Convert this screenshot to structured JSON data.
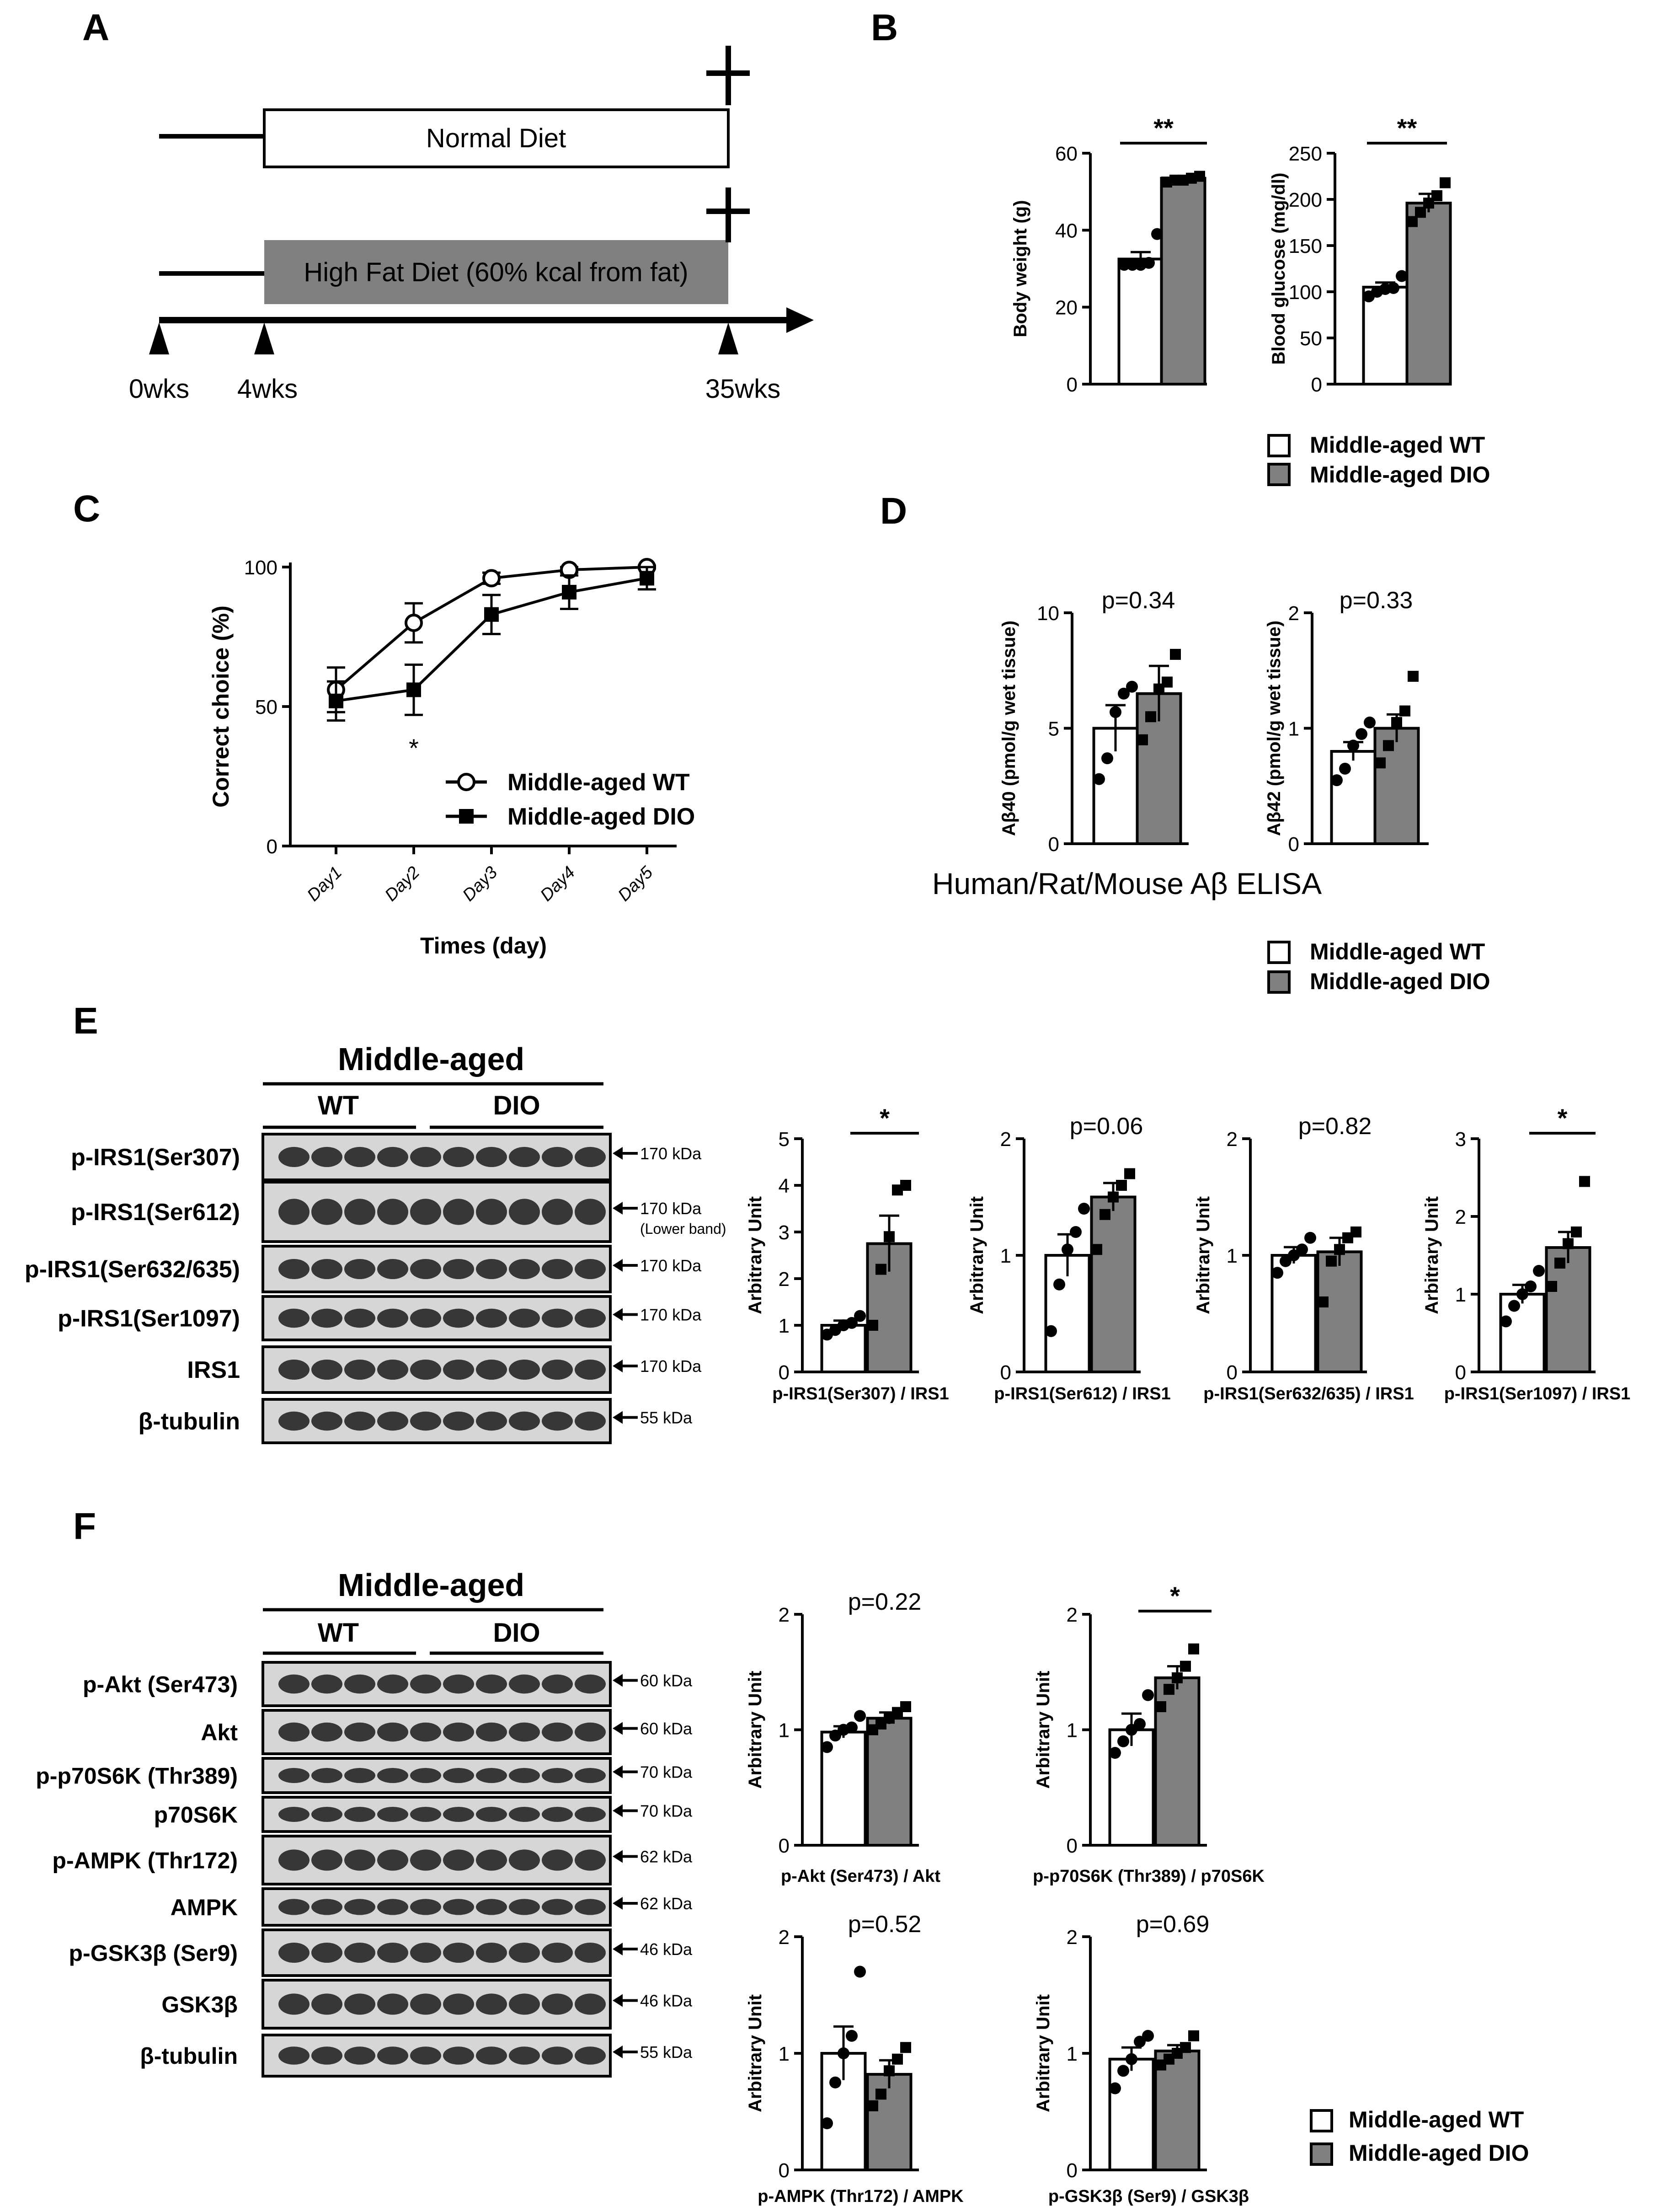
{
  "colors": {
    "wt": "#ffffff",
    "dio": "#808080",
    "line": "#000000",
    "blot_bg": "#d6d6d6",
    "band": "#1b1b1b"
  },
  "labels": {
    "panels": {
      "a": "A",
      "b": "B",
      "c": "C",
      "d": "D",
      "e": "E",
      "f": "F"
    },
    "timeline": {
      "normal_diet": "Normal Diet",
      "hfd": "High Fat Diet (60% kcal from fat)",
      "t0": "0wks",
      "t4": "4wks",
      "t35": "35wks"
    },
    "legend": {
      "wt": "Middle-aged WT",
      "dio": "Middle-aged DIO"
    },
    "elisa": "Human/Rat/Mouse Aβ ELISA",
    "middle_aged": "Middle-aged",
    "group_wt": "WT",
    "group_dio": "DIO"
  },
  "blots_e": [
    {
      "name": "p-IRS1(Ser307)",
      "kda": "170 kDa",
      "sub": ""
    },
    {
      "name": "p-IRS1(Ser612)",
      "kda": "170 kDa",
      "sub": "(Lower band)"
    },
    {
      "name": "p-IRS1(Ser632/635)",
      "kda": "170 kDa",
      "sub": ""
    },
    {
      "name": "p-IRS1(Ser1097)",
      "kda": "170 kDa",
      "sub": ""
    },
    {
      "name": "IRS1",
      "kda": "170 kDa",
      "sub": ""
    },
    {
      "name": "β-tubulin",
      "kda": "55 kDa",
      "sub": ""
    }
  ],
  "blots_f": [
    {
      "name": "p-Akt (Ser473)",
      "kda": "60 kDa"
    },
    {
      "name": "Akt",
      "kda": "60 kDa"
    },
    {
      "name": "p-p70S6K (Thr389)",
      "kda": "70 kDa"
    },
    {
      "name": "p70S6K",
      "kda": "70 kDa"
    },
    {
      "name": "p-AMPK (Thr172)",
      "kda": "62 kDa"
    },
    {
      "name": "AMPK",
      "kda": "62 kDa"
    },
    {
      "name": "p-GSK3β (Ser9)",
      "kda": "46 kDa"
    },
    {
      "name": "GSK3β",
      "kda": "46 kDa"
    },
    {
      "name": "β-tubulin",
      "kda": "55 kDa"
    }
  ],
  "chart_data": [
    {
      "id": "b1",
      "type": "bar",
      "ylabel": "Body weight (g)",
      "ylim": [
        0,
        60
      ],
      "ticks": [
        0,
        20,
        40,
        60
      ],
      "annotation": "**",
      "categories": [
        "Middle-aged WT",
        "Middle-aged DIO"
      ],
      "values": [
        32.5,
        53.5
      ],
      "sem": [
        1.8,
        0.6
      ],
      "points": [
        [
          31,
          31,
          31,
          31.5,
          39
        ],
        [
          52.5,
          53,
          53,
          53.5,
          54
        ]
      ]
    },
    {
      "id": "b2",
      "type": "bar",
      "ylabel": "Blood glucose (mg/dl)",
      "ylim": [
        0,
        250
      ],
      "ticks": [
        0,
        50,
        100,
        150,
        200,
        250
      ],
      "annotation": "**",
      "categories": [
        "Middle-aged WT",
        "Middle-aged DIO"
      ],
      "values": [
        105,
        196
      ],
      "sem": [
        5,
        10
      ],
      "points": [
        [
          95,
          100,
          103,
          104,
          117
        ],
        [
          176,
          186,
          196,
          204,
          218
        ]
      ]
    },
    {
      "id": "c",
      "type": "line",
      "ylabel": "Correct choice (%)",
      "xlabel": "Times (day)",
      "ylim": [
        0,
        100
      ],
      "ticks": [
        0,
        50,
        100
      ],
      "categories": [
        "Day1",
        "Day2",
        "Day3",
        "Day4",
        "Day5"
      ],
      "annotation": "*",
      "annotation_at": "Day2",
      "series": [
        {
          "name": "Middle-aged WT",
          "marker": "open-circle",
          "values": [
            56,
            80,
            96,
            99,
            100
          ],
          "sem": [
            8,
            7,
            2,
            1,
            0.5
          ]
        },
        {
          "name": "Middle-aged DIO",
          "marker": "filled-square",
          "values": [
            52,
            56,
            83,
            91,
            96
          ],
          "sem": [
            7,
            9,
            7,
            6,
            4
          ]
        }
      ]
    },
    {
      "id": "d1",
      "type": "bar",
      "ylabel": "Aβ40 (pmol/g wet tissue)",
      "ylim": [
        0,
        10
      ],
      "ticks": [
        0,
        5,
        10
      ],
      "annotation": "p=0.34",
      "categories": [
        "Middle-aged WT",
        "Middle-aged DIO"
      ],
      "values": [
        5.0,
        6.5
      ],
      "sem": [
        1.0,
        1.2
      ],
      "points": [
        [
          2.8,
          3.7,
          5.7,
          6.5,
          6.8
        ],
        [
          4.5,
          5.5,
          6.7,
          7.0,
          8.2
        ]
      ]
    },
    {
      "id": "d2",
      "type": "bar",
      "ylabel": "Aβ42 (pmol/g wet tissue)",
      "ylim": [
        0,
        2
      ],
      "ticks": [
        0,
        1,
        2
      ],
      "annotation": "p=0.33",
      "categories": [
        "Middle-aged WT",
        "Middle-aged DIO"
      ],
      "values": [
        0.8,
        1.0
      ],
      "sem": [
        0.08,
        0.12
      ],
      "points": [
        [
          0.55,
          0.65,
          0.85,
          0.95,
          1.05
        ],
        [
          0.7,
          0.85,
          1.05,
          1.15,
          1.45
        ]
      ]
    },
    {
      "id": "e1",
      "type": "bar",
      "xlabel": "p-IRS1(Ser307) / IRS1",
      "ylabel": "Arbitrary Unit",
      "ylim": [
        0,
        5
      ],
      "ticks": [
        0,
        1,
        2,
        3,
        4,
        5
      ],
      "annotation": "*",
      "categories": [
        "Middle-aged WT",
        "Middle-aged DIO"
      ],
      "values": [
        1.0,
        2.75
      ],
      "sem": [
        0.1,
        0.6
      ],
      "points": [
        [
          0.8,
          0.9,
          1.0,
          1.05,
          1.2
        ],
        [
          1.0,
          2.2,
          2.9,
          3.9,
          4.0
        ]
      ]
    },
    {
      "id": "e2",
      "type": "bar",
      "xlabel": "p-IRS1(Ser612) / IRS1",
      "ylabel": "Arbitrary Unit",
      "ylim": [
        0,
        2
      ],
      "ticks": [
        0,
        1,
        2
      ],
      "annotation": "p=0.06",
      "categories": [
        "Middle-aged WT",
        "Middle-aged DIO"
      ],
      "values": [
        1.0,
        1.5
      ],
      "sem": [
        0.18,
        0.12
      ],
      "points": [
        [
          0.35,
          0.75,
          1.05,
          1.2,
          1.4
        ],
        [
          1.05,
          1.35,
          1.5,
          1.6,
          1.7
        ]
      ]
    },
    {
      "id": "e3",
      "type": "bar",
      "xlabel": "p-IRS1(Ser632/635) / IRS1",
      "ylabel": "Arbitrary Unit",
      "ylim": [
        0,
        2
      ],
      "ticks": [
        0,
        1,
        2
      ],
      "annotation": "p=0.82",
      "categories": [
        "Middle-aged WT",
        "Middle-aged DIO"
      ],
      "values": [
        1.0,
        1.03
      ],
      "sem": [
        0.07,
        0.12
      ],
      "points": [
        [
          0.85,
          0.95,
          1.0,
          1.05,
          1.15
        ],
        [
          0.6,
          0.95,
          1.05,
          1.15,
          1.2
        ]
      ]
    },
    {
      "id": "e4",
      "type": "bar",
      "xlabel": "p-IRS1(Ser1097) / IRS1",
      "ylabel": "Arbitrary Unit",
      "ylim": [
        0,
        3
      ],
      "ticks": [
        0,
        1,
        2,
        3
      ],
      "annotation": "*",
      "categories": [
        "Middle-aged WT",
        "Middle-aged DIO"
      ],
      "values": [
        1.0,
        1.6
      ],
      "sem": [
        0.12,
        0.2
      ],
      "points": [
        [
          0.65,
          0.85,
          1.0,
          1.1,
          1.3
        ],
        [
          1.1,
          1.4,
          1.65,
          1.8,
          2.45
        ]
      ]
    },
    {
      "id": "f1",
      "type": "bar",
      "xlabel": "p-Akt (Ser473) / Akt",
      "ylabel": "Arbitrary Unit",
      "ylim": [
        0,
        2
      ],
      "ticks": [
        0,
        1,
        2
      ],
      "annotation": "p=0.22",
      "categories": [
        "Middle-aged WT",
        "Middle-aged DIO"
      ],
      "values": [
        0.98,
        1.1
      ],
      "sem": [
        0.05,
        0.05
      ],
      "points": [
        [
          0.85,
          0.95,
          1.0,
          1.02,
          1.12
        ],
        [
          1.0,
          1.05,
          1.1,
          1.15,
          1.2
        ]
      ]
    },
    {
      "id": "f2",
      "type": "bar",
      "xlabel": "p-p70S6K (Thr389) / p70S6K",
      "ylabel": "Arbitrary Unit",
      "ylim": [
        0,
        2
      ],
      "ticks": [
        0,
        1,
        2
      ],
      "annotation": "*",
      "categories": [
        "Middle-aged WT",
        "Middle-aged DIO"
      ],
      "values": [
        1.0,
        1.45
      ],
      "sem": [
        0.14,
        0.1
      ],
      "points": [
        [
          0.8,
          0.9,
          1.0,
          1.05,
          1.3
        ],
        [
          1.2,
          1.35,
          1.45,
          1.55,
          1.7
        ]
      ]
    },
    {
      "id": "f3",
      "type": "bar",
      "xlabel": "p-AMPK (Thr172) / AMPK",
      "ylabel": "Arbitrary Unit",
      "ylim": [
        0,
        2
      ],
      "ticks": [
        0,
        1,
        2
      ],
      "annotation": "p=0.52",
      "categories": [
        "Middle-aged WT",
        "Middle-aged DIO"
      ],
      "values": [
        1.0,
        0.82
      ],
      "sem": [
        0.23,
        0.12
      ],
      "points": [
        [
          0.4,
          0.75,
          1.0,
          1.15,
          1.7
        ],
        [
          0.55,
          0.65,
          0.85,
          0.95,
          1.05
        ]
      ]
    },
    {
      "id": "f4",
      "type": "bar",
      "xlabel": "p-GSK3β (Ser9) / GSK3β",
      "ylabel": "Arbitrary Unit",
      "ylim": [
        0,
        2
      ],
      "ticks": [
        0,
        1,
        2
      ],
      "annotation": "p=0.69",
      "categories": [
        "Middle-aged WT",
        "Middle-aged DIO"
      ],
      "values": [
        0.95,
        1.02
      ],
      "sem": [
        0.1,
        0.05
      ],
      "points": [
        [
          0.7,
          0.85,
          0.95,
          1.1,
          1.15
        ],
        [
          0.9,
          0.95,
          1.0,
          1.05,
          1.15
        ]
      ]
    }
  ]
}
